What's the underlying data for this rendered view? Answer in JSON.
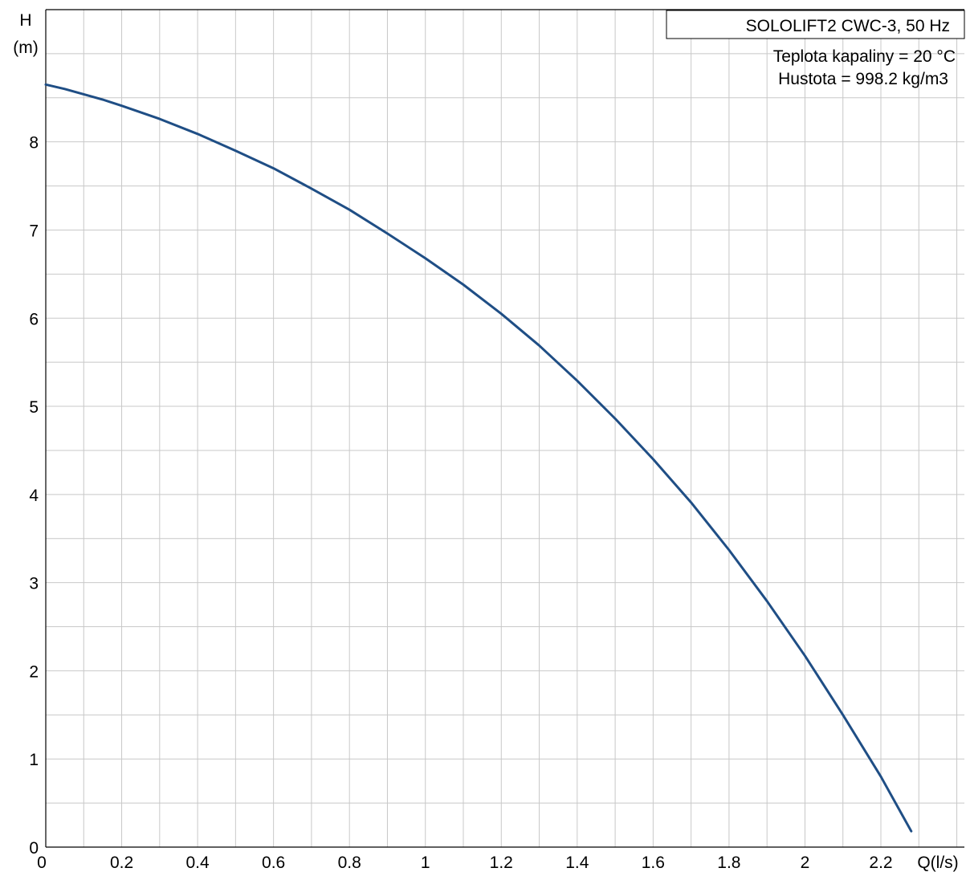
{
  "chart_data": {
    "type": "line",
    "title": "SOLOLIFT2 CWC-3, 50 Hz",
    "info_lines": [
      "Teplota kapaliny = 20 °C",
      "Hustota = 998.2 kg/m3"
    ],
    "xlabel": "Q(l/s)",
    "ylabel_line1": "H",
    "ylabel_line2": "(m)",
    "xlim": [
      0,
      2.42
    ],
    "ylim": [
      0,
      9.5
    ],
    "x_ticks": [
      0,
      0.2,
      0.4,
      0.6,
      0.8,
      1,
      1.2,
      1.4,
      1.6,
      1.8,
      2,
      2.2
    ],
    "x_tick_labels": [
      "0",
      "0.2",
      "0.4",
      "0.6",
      "0.8",
      "1",
      "1.2",
      "1.4",
      "1.6",
      "1.8",
      "2",
      "2.2"
    ],
    "y_ticks": [
      0,
      1,
      2,
      3,
      4,
      5,
      6,
      7,
      8
    ],
    "y_tick_labels": [
      "0",
      "1",
      "2",
      "3",
      "4",
      "5",
      "6",
      "7",
      "8"
    ],
    "grid": true,
    "legend_position": "top-right",
    "curve_color": "#1f4e85",
    "series": [
      {
        "x": [
          0,
          0.05,
          0.1,
          0.15,
          0.2,
          0.3,
          0.4,
          0.5,
          0.6,
          0.7,
          0.8,
          0.9,
          1.0,
          1.1,
          1.2,
          1.3,
          1.4,
          1.5,
          1.6,
          1.7,
          1.8,
          1.9,
          2.0,
          2.1,
          2.2,
          2.28
        ],
        "y": [
          8.65,
          8.6,
          8.54,
          8.48,
          8.41,
          8.26,
          8.09,
          7.9,
          7.7,
          7.47,
          7.23,
          6.96,
          6.68,
          6.38,
          6.05,
          5.69,
          5.29,
          4.86,
          4.4,
          3.91,
          3.37,
          2.79,
          2.17,
          1.5,
          0.8,
          0.18
        ]
      }
    ]
  }
}
